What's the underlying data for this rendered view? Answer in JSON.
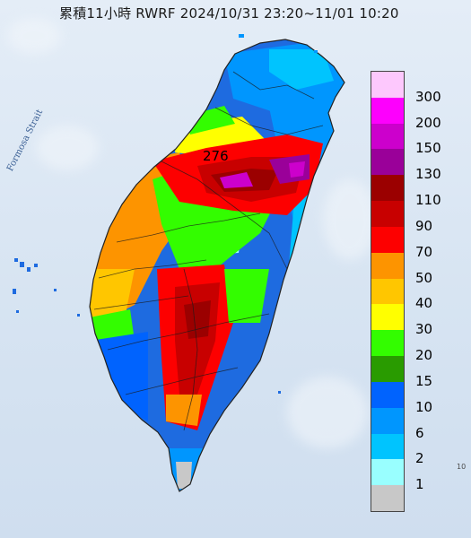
{
  "title": "累積11小時 RWRF 2024/10/31 23:20~11/01 10:20",
  "strait_label": "Formosa Strait",
  "max_value_label": "276",
  "corner_mark": "10",
  "legend": {
    "labels": [
      "300",
      "200",
      "150",
      "130",
      "110",
      "90",
      "70",
      "50",
      "40",
      "30",
      "20",
      "15",
      "10",
      "6",
      "2",
      "1"
    ],
    "colors": [
      "#fdc8fd",
      "#fd00fd",
      "#cc00cc",
      "#9a0099",
      "#9b0000",
      "#c80000",
      "#fd0000",
      "#fd9400",
      "#ffc600",
      "#ffff00",
      "#33fd00",
      "#299b00",
      "#0063fe",
      "#0096fe",
      "#00c4fe",
      "#99ffff",
      "#c8c8c8"
    ]
  },
  "colors": {
    "ocean": "#dbe6f2",
    "unlabeled_bottom_swatch": "#c8c8c8",
    "map_outline": "#222222"
  }
}
